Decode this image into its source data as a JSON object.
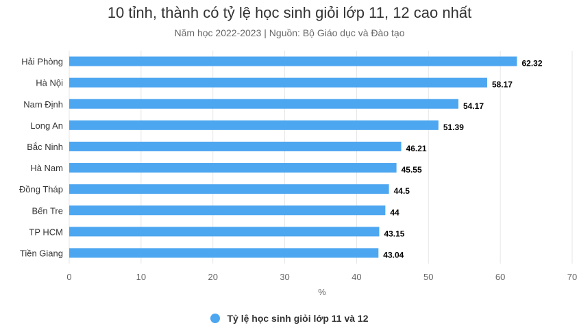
{
  "chart_data": {
    "type": "bar",
    "orientation": "horizontal",
    "title": "10 tỉnh, thành có tỷ lệ học sinh giỏi lớp 11, 12 cao nhất",
    "subtitle": "Năm học 2022-2023 | Nguồn: Bộ Giáo dục và Đào tạo",
    "categories": [
      "Hải Phòng",
      "Hà Nội",
      "Nam Định",
      "Long An",
      "Bắc Ninh",
      "Hà Nam",
      "Đồng Tháp",
      "Bến Tre",
      "TP HCM",
      "Tiền Giang"
    ],
    "series": [
      {
        "name": "Tỷ lệ học sinh giỏi lớp 11 và 12",
        "values": [
          62.32,
          58.17,
          54.17,
          51.39,
          46.21,
          45.55,
          44.5,
          44,
          43.15,
          43.04
        ],
        "color": "#4da6f0"
      }
    ],
    "xlabel": "%",
    "ylabel": "",
    "xlim": [
      0,
      70
    ],
    "xticks": [
      0,
      10,
      20,
      30,
      40,
      50,
      60,
      70
    ],
    "grid": true,
    "data_labels": true,
    "legend": "bottom-center"
  },
  "colors": {
    "grid": "#e6e6e6",
    "axis_text": "#666666",
    "label_text": "#000000"
  }
}
